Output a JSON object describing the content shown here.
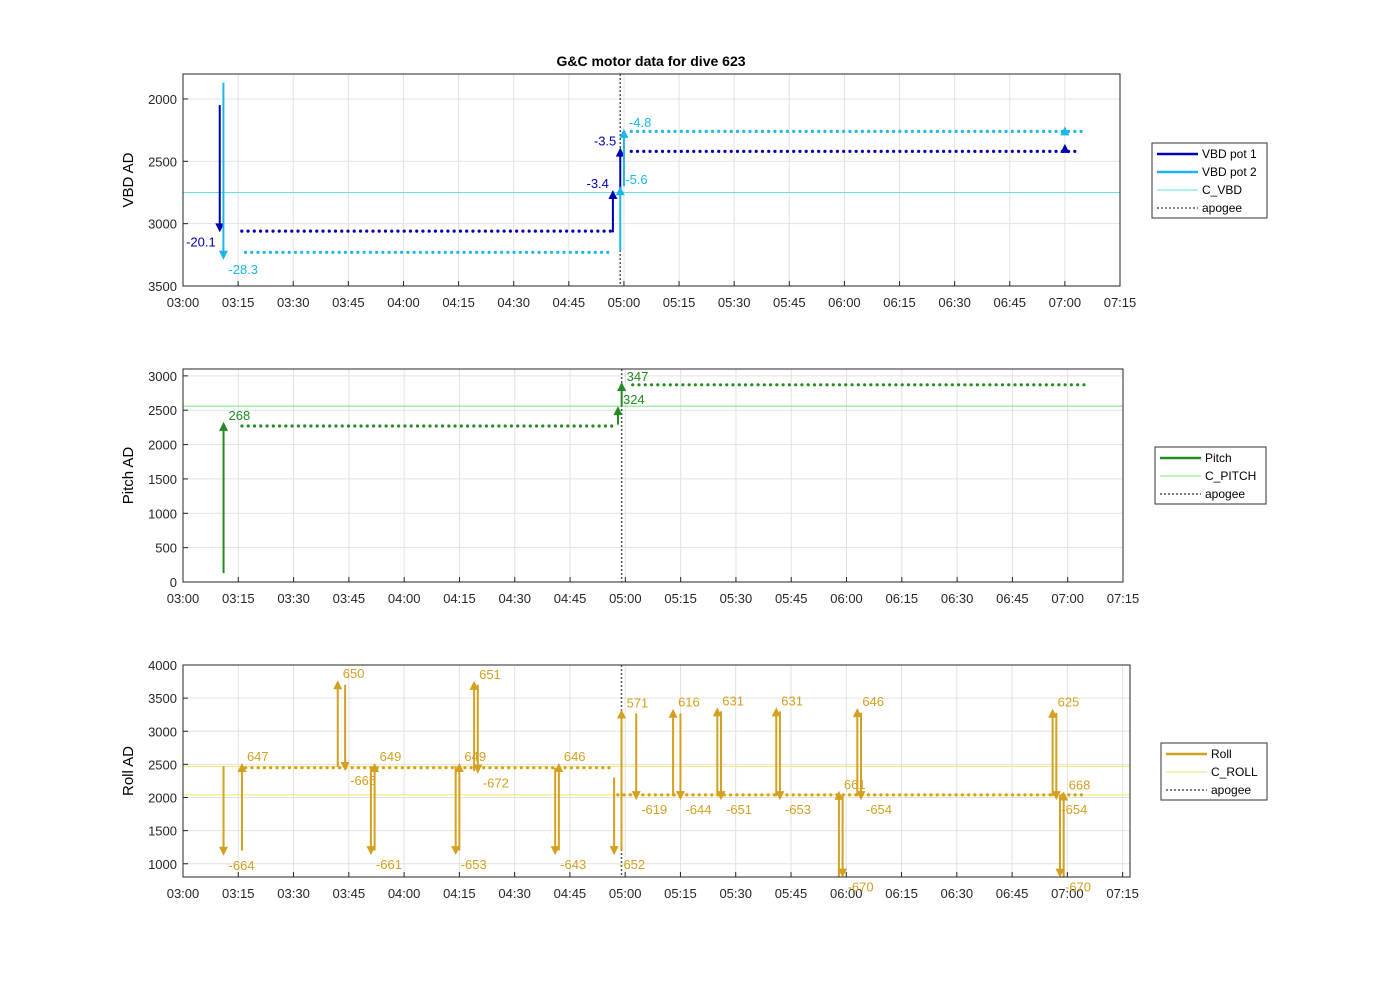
{
  "figure": {
    "title": "G&C motor data for dive 623"
  },
  "colors": {
    "vbd1": "#0000B0",
    "vbd2": "#1AB8E8",
    "c_vbd": "#5FE0E6",
    "pitch": "#228B22",
    "c_pitch": "#7CE07C",
    "roll": "#D4A020",
    "c_roll": "#F2E66A",
    "apogee": "#555555",
    "grid": "#E2E2E2",
    "axis": "#262626"
  },
  "chart_data": [
    {
      "type": "line",
      "ylabel": "VBD AD",
      "xlabel": "",
      "ylim": [
        1800,
        3500
      ],
      "y_reversed": true,
      "yticks": [
        2000,
        2500,
        3000,
        3500
      ],
      "xlim_minutes": [
        180,
        435
      ],
      "xticks": [
        "03:00",
        "03:15",
        "03:30",
        "03:45",
        "04:00",
        "04:15",
        "04:30",
        "04:45",
        "05:00",
        "05:15",
        "05:30",
        "05:45",
        "06:00",
        "06:15",
        "06:30",
        "06:45",
        "07:00",
        "07:15"
      ],
      "grid": true,
      "legend": {
        "placement": "outside-right",
        "entries": [
          "VBD pot 1",
          "VBD pot 2",
          "C_VBD",
          "apogee"
        ]
      },
      "references": [
        {
          "name": "C_VBD",
          "y": 2750,
          "color_key": "c_vbd"
        }
      ],
      "apogee_x": "04:59",
      "series": [
        {
          "name": "VBD pot 1",
          "color_key": "vbd1",
          "segments": [
            {
              "from": "03:16",
              "to": "04:57",
              "y": 3060
            },
            {
              "from": "05:02",
              "to": "07:03",
              "y": 2420
            }
          ]
        },
        {
          "name": "VBD pot 2",
          "color_key": "vbd2",
          "segments": [
            {
              "from": "03:17",
              "to": "04:57",
              "y": 3230
            },
            {
              "from": "05:02",
              "to": "07:05",
              "y": 2260
            }
          ]
        }
      ],
      "arrows": [
        {
          "series": "VBD pot 1",
          "x": "03:10",
          "y0": 2050,
          "y1": 3070,
          "label": "-20.1",
          "label_side": "left"
        },
        {
          "series": "VBD pot 2",
          "x": "03:11",
          "y0": 1870,
          "y1": 3290,
          "label": "-28.3",
          "label_side": "right"
        },
        {
          "series": "VBD pot 1",
          "x": "04:57",
          "y0": 3070,
          "y1": 2730,
          "label": "-3.4",
          "label_side": "left"
        },
        {
          "series": "VBD pot 1",
          "x": "04:59",
          "y0": 2740,
          "y1": 2390,
          "label": "-3.5",
          "label_side": "left"
        },
        {
          "series": "VBD pot 2",
          "x": "04:59",
          "y0": 3220,
          "y1": 2700,
          "label": "-5.6",
          "label_side": "right"
        },
        {
          "series": "VBD pot 2",
          "x": "05:00",
          "y0": 2700,
          "y1": 2240,
          "label": "-4.8",
          "label_side": "right"
        },
        {
          "series": "VBD pot 1",
          "x": "07:00",
          "y0": 2410,
          "y1": 2360,
          "label": "",
          "label_side": "right"
        },
        {
          "series": "VBD pot 2",
          "x": "07:00",
          "y0": 2260,
          "y1": 2220,
          "label": "",
          "label_side": "right"
        }
      ]
    },
    {
      "type": "line",
      "ylabel": "Pitch AD",
      "xlabel": "",
      "ylim": [
        0,
        3100
      ],
      "y_reversed": false,
      "yticks": [
        0,
        500,
        1000,
        1500,
        2000,
        2500,
        3000
      ],
      "xlim_minutes": [
        180,
        435
      ],
      "xticks": [
        "03:00",
        "03:15",
        "03:30",
        "03:45",
        "04:00",
        "04:15",
        "04:30",
        "04:45",
        "05:00",
        "05:15",
        "05:30",
        "05:45",
        "06:00",
        "06:15",
        "06:30",
        "06:45",
        "07:00",
        "07:15"
      ],
      "grid": true,
      "legend": {
        "placement": "outside-right",
        "entries": [
          "Pitch",
          "C_PITCH",
          "apogee"
        ]
      },
      "references": [
        {
          "name": "C_PITCH",
          "y": 2560,
          "color_key": "c_pitch"
        }
      ],
      "apogee_x": "04:59",
      "series": [
        {
          "name": "Pitch",
          "color_key": "pitch",
          "segments": [
            {
              "from": "03:16",
              "to": "04:57",
              "y": 2270
            },
            {
              "from": "05:02",
              "to": "07:05",
              "y": 2870
            }
          ]
        }
      ],
      "arrows": [
        {
          "series": "Pitch",
          "x": "03:11",
          "y0": 130,
          "y1": 2330,
          "label": "268",
          "label_side": "right"
        },
        {
          "series": "Pitch",
          "x": "04:58",
          "y0": 2290,
          "y1": 2560,
          "label": "324",
          "label_side": "right"
        },
        {
          "series": "Pitch",
          "x": "04:59",
          "y0": 2560,
          "y1": 2910,
          "label": "347",
          "label_side": "right"
        }
      ]
    },
    {
      "type": "line",
      "ylabel": "Roll AD",
      "xlabel": "",
      "ylim": [
        800,
        4000
      ],
      "y_reversed": false,
      "yticks": [
        1000,
        1500,
        2000,
        2500,
        3000,
        3500,
        4000
      ],
      "xlim_minutes": [
        180,
        437
      ],
      "xticks": [
        "03:00",
        "03:15",
        "03:30",
        "03:45",
        "04:00",
        "04:15",
        "04:30",
        "04:45",
        "05:00",
        "05:15",
        "05:30",
        "05:45",
        "06:00",
        "06:15",
        "06:30",
        "06:45",
        "07:00",
        "07:15"
      ],
      "grid": true,
      "legend": {
        "placement": "outside-right",
        "entries": [
          "Roll",
          "C_ROLL",
          "apogee"
        ]
      },
      "references": [
        {
          "name": "C_ROLL",
          "y": 2470,
          "color_key": "c_roll"
        },
        {
          "name": "C_ROLL",
          "y": 2040,
          "color_key": "c_roll"
        }
      ],
      "apogee_x": "04:59",
      "series": [
        {
          "name": "Roll",
          "color_key": "roll",
          "segments": [
            {
              "from": "03:17",
              "to": "04:57",
              "y": 2450
            },
            {
              "from": "04:58",
              "to": "07:05",
              "y": 2040
            }
          ]
        }
      ],
      "arrows": [
        {
          "series": "Roll",
          "x": "03:11",
          "y0": 2470,
          "y1": 1120,
          "label": "-664",
          "label_side": "right"
        },
        {
          "series": "Roll",
          "x": "03:16",
          "y0": 1200,
          "y1": 2520,
          "label": "647",
          "label_side": "right"
        },
        {
          "series": "Roll",
          "x": "03:42",
          "y0": 2460,
          "y1": 3770,
          "label": "650",
          "label_side": "right"
        },
        {
          "series": "Roll",
          "x": "03:44",
          "y0": 3700,
          "y1": 2400,
          "label": "-665",
          "label_side": "right"
        },
        {
          "series": "Roll",
          "x": "03:51",
          "y0": 2460,
          "y1": 1130,
          "label": "-661",
          "label_side": "right"
        },
        {
          "series": "Roll",
          "x": "03:52",
          "y0": 1200,
          "y1": 2520,
          "label": "649",
          "label_side": "right"
        },
        {
          "series": "Roll",
          "x": "04:14",
          "y0": 2470,
          "y1": 1130,
          "label": "-653",
          "label_side": "right"
        },
        {
          "series": "Roll",
          "x": "04:15",
          "y0": 1200,
          "y1": 2520,
          "label": "649",
          "label_side": "right"
        },
        {
          "series": "Roll",
          "x": "04:19",
          "y0": 2400,
          "y1": 3760,
          "label": "651",
          "label_side": "right"
        },
        {
          "series": "Roll",
          "x": "04:20",
          "y0": 3700,
          "y1": 2360,
          "label": "-672",
          "label_side": "right"
        },
        {
          "series": "Roll",
          "x": "04:41",
          "y0": 2450,
          "y1": 1130,
          "label": "-643",
          "label_side": "right"
        },
        {
          "series": "Roll",
          "x": "04:42",
          "y0": 1200,
          "y1": 2520,
          "label": "646",
          "label_side": "right"
        },
        {
          "series": "Roll",
          "x": "04:57",
          "y0": 2300,
          "y1": 1130,
          "label": "-652",
          "label_side": "right"
        },
        {
          "series": "Roll",
          "x": "04:59",
          "y0": 1200,
          "y1": 3330,
          "label": "571",
          "label_side": "right"
        },
        {
          "series": "Roll",
          "x": "05:03",
          "y0": 3270,
          "y1": 1960,
          "label": "-619",
          "label_side": "right"
        },
        {
          "series": "Roll",
          "x": "05:13",
          "y0": 2020,
          "y1": 3340,
          "label": "616",
          "label_side": "right"
        },
        {
          "series": "Roll",
          "x": "05:15",
          "y0": 3270,
          "y1": 1960,
          "label": "-644",
          "label_side": "right"
        },
        {
          "series": "Roll",
          "x": "05:25",
          "y0": 2020,
          "y1": 3360,
          "label": "631",
          "label_side": "right"
        },
        {
          "series": "Roll",
          "x": "05:26",
          "y0": 3300,
          "y1": 1960,
          "label": "-651",
          "label_side": "right"
        },
        {
          "series": "Roll",
          "x": "05:41",
          "y0": 2020,
          "y1": 3360,
          "label": "631",
          "label_side": "right"
        },
        {
          "series": "Roll",
          "x": "05:42",
          "y0": 3300,
          "y1": 1960,
          "label": "-653",
          "label_side": "right"
        },
        {
          "series": "Roll",
          "x": "05:58",
          "y0": 780,
          "y1": 2100,
          "label": "661",
          "label_side": "right"
        },
        {
          "series": "Roll",
          "x": "05:59",
          "y0": 2040,
          "y1": 790,
          "label": "-670",
          "label_side": "right"
        },
        {
          "series": "Roll",
          "x": "06:03",
          "y0": 2020,
          "y1": 3350,
          "label": "646",
          "label_side": "right"
        },
        {
          "series": "Roll",
          "x": "06:04",
          "y0": 3280,
          "y1": 1960,
          "label": "-654",
          "label_side": "right"
        },
        {
          "series": "Roll",
          "x": "06:56",
          "y0": 2020,
          "y1": 3340,
          "label": "625",
          "label_side": "right"
        },
        {
          "series": "Roll",
          "x": "06:57",
          "y0": 3280,
          "y1": 1960,
          "label": "-654",
          "label_side": "right"
        },
        {
          "series": "Roll",
          "x": "06:58",
          "y0": 2040,
          "y1": 790,
          "label": "-670",
          "label_side": "right"
        },
        {
          "series": "Roll",
          "x": "06:59",
          "y0": 790,
          "y1": 2090,
          "label": "668",
          "label_side": "right"
        }
      ]
    }
  ]
}
